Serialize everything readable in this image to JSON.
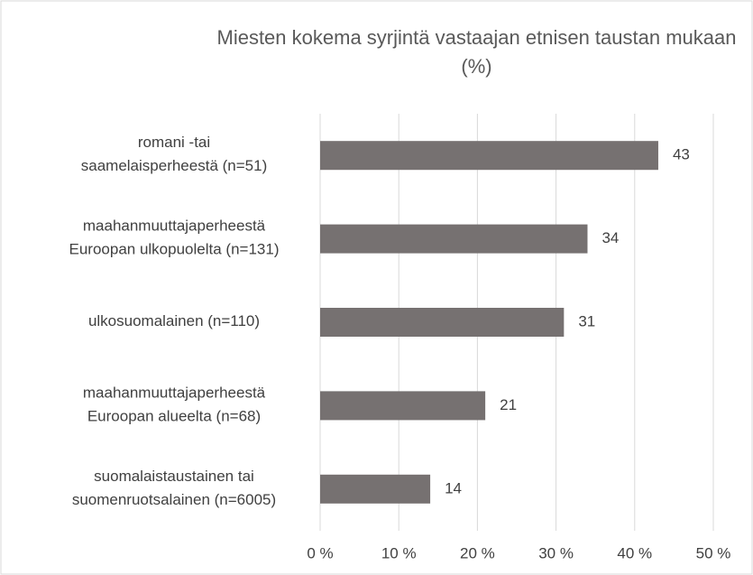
{
  "chart_data": {
    "type": "barh",
    "title": "Miesten kokema syrjintä vastaajan etnisen taustan mukaan (%)",
    "categories": [
      "romani -tai\nsaamelaisperheestä (n=51)",
      "maahanmuuttajaperheestä\nEuroopan ulkopuolelta (n=131)",
      "ulkosuomalainen (n=110)",
      "maahanmuuttajaperheestä\nEuroopan alueelta (n=68)",
      "suomalaistaustainen tai\nsuomenruotsalainen (n=6005)"
    ],
    "values": [
      43,
      34,
      31,
      21,
      14
    ],
    "color": "#767171",
    "xlim": [
      0,
      50
    ],
    "xticks": [
      {
        "value": 0,
        "label": "0 %"
      },
      {
        "value": 10,
        "label": "10 %"
      },
      {
        "value": 20,
        "label": "20 %"
      },
      {
        "value": 30,
        "label": "30 %"
      },
      {
        "value": 40,
        "label": "40 %"
      },
      {
        "value": 50,
        "label": "50 %"
      }
    ],
    "grid": true
  }
}
